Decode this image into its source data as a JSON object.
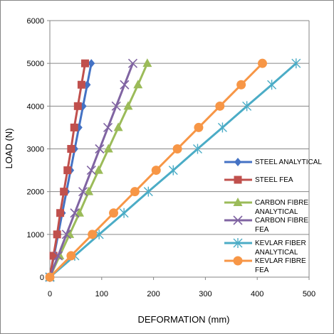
{
  "chart_data": {
    "type": "line",
    "title": "",
    "xlabel": "DEFORMATION (mm)",
    "ylabel": "LOAD (N)",
    "xlim": [
      0,
      500
    ],
    "ylim": [
      0,
      6000
    ],
    "xticks": [
      "0",
      "100",
      "200",
      "300",
      "400",
      "500"
    ],
    "yticks": [
      "0",
      "1000",
      "2000",
      "3000",
      "4000",
      "5000",
      "6000"
    ],
    "grid": "horizontal",
    "legend_position": "right",
    "series": [
      {
        "name": "STEEL ANALYTICAL",
        "color": "#4472C4",
        "marker": "diamond",
        "x": [
          0,
          8,
          16,
          24,
          32,
          40,
          48,
          56,
          64,
          72,
          80
        ],
        "y": [
          0,
          500,
          1000,
          1500,
          2000,
          2500,
          3000,
          3500,
          4000,
          4500,
          5000
        ]
      },
      {
        "name": "STEEL FEA",
        "color": "#C0504D",
        "marker": "square",
        "x": [
          0,
          7,
          14,
          20,
          27,
          34,
          41,
          47,
          54,
          61,
          68
        ],
        "y": [
          0,
          500,
          1000,
          1500,
          2000,
          2500,
          3000,
          3500,
          4000,
          4500,
          5000
        ]
      },
      {
        "name": "CARBON FIBRE ANALYTICAL",
        "color": "#9BBB59",
        "marker": "triangle",
        "x": [
          0,
          19,
          38,
          57,
          75,
          94,
          113,
          132,
          151,
          170,
          188
        ],
        "y": [
          0,
          500,
          1000,
          1500,
          2000,
          2500,
          3000,
          3500,
          4000,
          4500,
          5000
        ]
      },
      {
        "name": "CARBON FIBRE FEA",
        "color": "#8064A2",
        "marker": "x",
        "x": [
          0,
          16,
          32,
          48,
          64,
          80,
          96,
          112,
          128,
          144,
          160
        ],
        "y": [
          0,
          500,
          1000,
          1500,
          2000,
          2500,
          3000,
          3500,
          4000,
          4500,
          5000
        ]
      },
      {
        "name": "KEVLAR FIBER ANALYTICAL",
        "color": "#4BACC6",
        "marker": "star",
        "x": [
          0,
          48,
          95,
          143,
          190,
          238,
          285,
          333,
          380,
          428,
          475
        ],
        "y": [
          0,
          500,
          1000,
          1500,
          2000,
          2500,
          3000,
          3500,
          4000,
          4500,
          5000
        ]
      },
      {
        "name": "KEVLAR FIBRE FEA",
        "color": "#F79646",
        "marker": "circle",
        "x": [
          0,
          41,
          82,
          123,
          164,
          205,
          246,
          287,
          328,
          369,
          410
        ],
        "y": [
          0,
          500,
          1000,
          1500,
          2000,
          2500,
          3000,
          3500,
          4000,
          4500,
          5000
        ]
      }
    ]
  }
}
